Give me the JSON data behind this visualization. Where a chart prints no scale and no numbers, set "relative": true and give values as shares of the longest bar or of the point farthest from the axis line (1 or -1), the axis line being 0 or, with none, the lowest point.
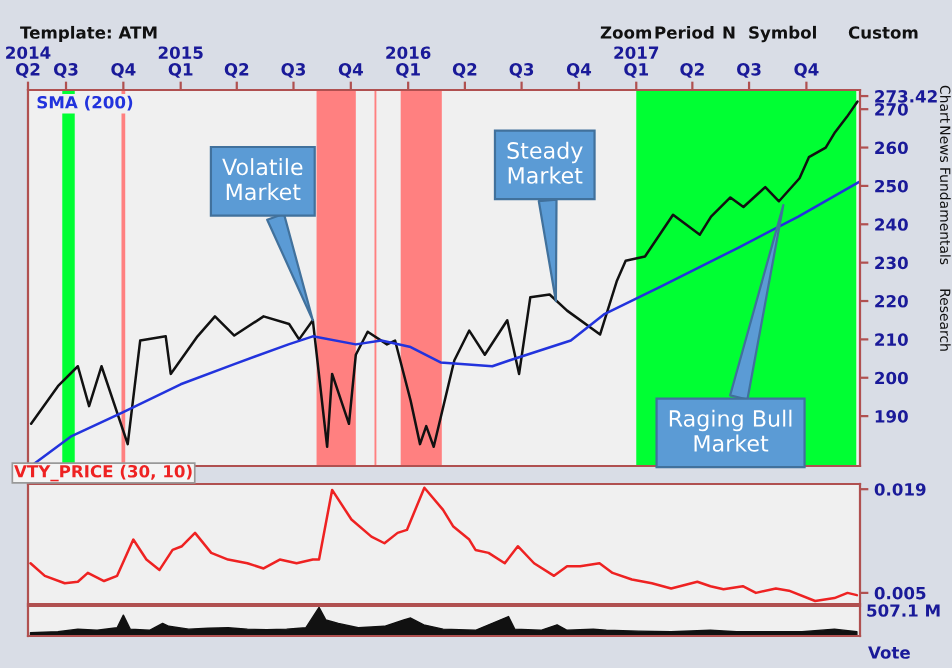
{
  "chart_data": [
    {
      "type": "line",
      "xlim": [
        "2014-05-01",
        "2017-12-26"
      ],
      "ylim": [
        177,
        275
      ],
      "yticks": [
        190,
        200,
        210,
        220,
        230,
        240,
        250,
        260,
        270,
        273.42
      ],
      "xticks": [
        {
          "value": "2014-05-01",
          "label": "Q2"
        },
        {
          "value": "2014-07-01",
          "label": "Q3"
        },
        {
          "value": "2014-10-01",
          "label": "Q4"
        },
        {
          "value": "2015-01-01",
          "label": "Q1"
        },
        {
          "value": "2015-04-01",
          "label": "Q2"
        },
        {
          "value": "2015-07-01",
          "label": "Q3"
        },
        {
          "value": "2015-10-01",
          "label": "Q4"
        },
        {
          "value": "2016-01-01",
          "label": "Q1"
        },
        {
          "value": "2016-04-01",
          "label": "Q2"
        },
        {
          "value": "2016-07-01",
          "label": "Q3"
        },
        {
          "value": "2016-10-01",
          "label": "Q4"
        },
        {
          "value": "2017-01-01",
          "label": "Q1"
        },
        {
          "value": "2017-04-01",
          "label": "Q2"
        },
        {
          "value": "2017-07-01",
          "label": "Q3"
        },
        {
          "value": "2017-10-01",
          "label": "Q4"
        }
      ],
      "x2lim": [
        "2014-05-01",
        "2017-12-26"
      ],
      "x2ticks": [
        {
          "value": "2014-05-01",
          "label": "2014"
        },
        {
          "value": "2015-01-01",
          "label": "2015"
        },
        {
          "value": "2016-01-01",
          "label": "2016"
        },
        {
          "value": "2017-01-01",
          "label": "2017"
        }
      ],
      "grid": false,
      "legend": false,
      "marker": "none",
      "line_style": "solid",
      "series": [
        {
          "color": "#111111",
          "x": [
            "2014-05-06",
            "2014-06-18",
            "2014-07-20",
            "2014-08-07",
            "2014-08-27",
            "2014-10-08",
            "2014-10-28",
            "2014-12-08",
            "2014-12-16",
            "2015-01-28",
            "2015-02-25",
            "2015-03-28",
            "2015-05-14",
            "2015-06-24",
            "2015-07-10",
            "2015-08-01",
            "2015-08-24",
            "2015-09-01",
            "2015-09-28",
            "2015-10-09",
            "2015-10-28",
            "2015-11-28",
            "2015-12-11",
            "2016-01-05",
            "2016-01-20",
            "2016-01-30",
            "2016-02-11",
            "2016-03-15",
            "2016-04-08",
            "2016-05-03",
            "2016-06-08",
            "2016-06-27",
            "2016-07-15",
            "2016-08-15",
            "2016-09-12",
            "2016-11-04",
            "2016-12-01",
            "2016-12-15",
            "2017-01-15",
            "2017-03-01",
            "2017-04-13",
            "2017-05-01",
            "2017-06-01",
            "2017-06-22",
            "2017-07-27",
            "2017-08-18",
            "2017-09-20",
            "2017-10-05",
            "2017-11-01",
            "2017-11-16",
            "2017-12-05",
            "2017-12-22"
          ],
          "values": [
            188,
            197.8,
            203,
            192.6,
            203,
            182.7,
            209.7,
            210.8,
            201,
            210.8,
            216,
            211,
            216,
            214,
            210,
            215,
            182,
            201,
            188,
            206,
            212,
            208.7,
            209.7,
            194,
            182.7,
            187.4,
            182,
            204.5,
            212.3,
            206,
            215,
            201,
            221,
            221.7,
            217.5,
            211.3,
            225.3,
            230.5,
            231.6,
            242.5,
            237.3,
            242,
            247,
            244.5,
            249.7,
            246,
            252,
            257.5,
            260,
            264,
            268,
            272
          ]
        },
        {
          "name": "SMA (200)",
          "color": "#2233dd",
          "x": [
            "2014-05-06",
            "2014-07-10",
            "2014-09-30",
            "2015-01-01",
            "2015-03-27",
            "2015-06-23",
            "2015-08-01",
            "2015-10-09",
            "2015-11-19",
            "2016-01-05",
            "2016-02-22",
            "2016-05-15",
            "2016-06-11",
            "2016-09-18",
            "2016-11-10",
            "2017-02-10",
            "2017-06-15",
            "2017-09-18",
            "2017-12-24"
          ],
          "values": [
            177,
            184.8,
            191,
            198.3,
            203.5,
            208.7,
            210.8,
            208.7,
            209.7,
            208,
            204,
            203,
            204.5,
            209.7,
            216.5,
            223.8,
            234,
            242,
            251
          ]
        }
      ],
      "bands": [
        {
          "axis": "x",
          "from": "2014-06-25",
          "to": "2014-07-15",
          "color": "#00ff33"
        },
        {
          "axis": "x",
          "from": "2014-09-28",
          "to": "2014-10-04",
          "color": "#ff8080"
        },
        {
          "axis": "x",
          "from": "2015-08-07",
          "to": "2015-10-09",
          "color": "#ff8080"
        },
        {
          "axis": "x",
          "from": "2015-11-08",
          "to": "2015-11-11",
          "color": "#ff8080"
        },
        {
          "axis": "x",
          "from": "2015-12-20",
          "to": "2016-02-24",
          "color": "#ff8080"
        },
        {
          "axis": "x",
          "from": "2017-01-01",
          "to": "2017-12-20",
          "color": "#00ff33"
        }
      ],
      "annotations": [
        {
          "text": "Volatile\nMarket",
          "x": "2015-08-01",
          "y": 215
        },
        {
          "text": "Steady\nMarket",
          "x": "2016-08-25",
          "y": 220
        },
        {
          "text": "Raging Bull\nMarket",
          "x": "2017-08-25",
          "y": 245
        },
        "Template: ATM",
        "Zoom",
        "Period",
        "N",
        "Symbol",
        "Custom",
        "Chart",
        "News",
        "Fundamentals",
        "Research"
      ]
    },
    {
      "type": "line",
      "title": "VTY_PRICE (30, 10)",
      "xlim": [
        "2014-05-01",
        "2017-12-26"
      ],
      "ylim": [
        0.0035,
        0.0197
      ],
      "yticks": [
        0.005,
        0.019
      ],
      "tick_labels": "y",
      "grid": false,
      "legend": false,
      "series": [
        {
          "color": "#ee2222",
          "x": [
            "2014-05-05",
            "2014-05-28",
            "2014-06-29",
            "2014-07-20",
            "2014-08-05",
            "2014-08-31",
            "2014-09-21",
            "2014-10-17",
            "2014-11-07",
            "2014-11-28",
            "2014-12-19",
            "2015-01-03",
            "2015-01-24",
            "2015-02-19",
            "2015-03-18",
            "2015-04-18",
            "2015-05-14",
            "2015-06-09",
            "2015-07-06",
            "2015-08-01",
            "2015-08-11",
            "2015-09-01",
            "2015-10-02",
            "2015-11-03",
            "2015-11-24",
            "2015-12-15",
            "2015-12-30",
            "2016-01-27",
            "2016-02-26",
            "2016-03-13",
            "2016-04-08",
            "2016-04-18",
            "2016-05-09",
            "2016-06-04",
            "2016-06-25",
            "2016-07-21",
            "2016-08-22",
            "2016-09-12",
            "2016-10-03",
            "2016-11-03",
            "2016-11-24",
            "2016-12-25",
            "2017-01-26",
            "2017-02-26",
            "2017-04-09",
            "2017-04-30",
            "2017-05-21",
            "2017-06-21",
            "2017-07-12",
            "2017-08-13",
            "2017-09-03",
            "2017-10-15",
            "2017-11-15",
            "2017-12-06",
            "2017-12-21"
          ],
          "values": [
            0.009,
            0.0073,
            0.0063,
            0.0065,
            0.0077,
            0.0066,
            0.0073,
            0.0122,
            0.0095,
            0.0081,
            0.0108,
            0.0113,
            0.0131,
            0.0104,
            0.0095,
            0.009,
            0.0083,
            0.0095,
            0.009,
            0.0095,
            0.0095,
            0.0189,
            0.0149,
            0.0126,
            0.0117,
            0.0131,
            0.0135,
            0.0192,
            0.0162,
            0.014,
            0.0122,
            0.0108,
            0.0104,
            0.009,
            0.0113,
            0.009,
            0.0073,
            0.0086,
            0.0086,
            0.009,
            0.0077,
            0.0068,
            0.0063,
            0.0056,
            0.0065,
            0.0059,
            0.0055,
            0.0059,
            0.005,
            0.0056,
            0.0053,
            0.0039,
            0.0043,
            0.005,
            0.0047
          ]
        }
      ]
    },
    {
      "type": "area",
      "relative": true,
      "xlim": [
        "2014-05-01",
        "2017-12-26"
      ],
      "tick_labels": false,
      "grid": false,
      "legend": false,
      "series": [
        {
          "color": "#111111",
          "x": [
            "2014-05-05",
            "2014-06-18",
            "2014-07-20",
            "2014-08-20",
            "2014-09-21",
            "2014-10-01",
            "2014-10-12",
            "2014-11-12",
            "2014-12-03",
            "2014-12-13",
            "2015-01-14",
            "2015-02-14",
            "2015-03-18",
            "2015-04-18",
            "2015-05-19",
            "2015-06-20",
            "2015-07-21",
            "2015-08-11",
            "2015-08-22",
            "2015-09-11",
            "2015-10-13",
            "2015-11-24",
            "2015-12-25",
            "2016-01-05",
            "2016-01-26",
            "2016-02-26",
            "2016-04-18",
            "2016-06-10",
            "2016-06-20",
            "2016-08-01",
            "2016-08-27",
            "2016-09-12",
            "2016-10-24",
            "2016-11-14",
            "2017-01-05",
            "2017-02-26",
            "2017-04-30",
            "2017-06-11",
            "2017-08-02",
            "2017-09-24",
            "2017-11-15",
            "2017-12-21"
          ],
          "values": [
            0.12,
            0.15,
            0.24,
            0.2,
            0.29,
            0.73,
            0.24,
            0.2,
            0.44,
            0.34,
            0.24,
            0.27,
            0.29,
            0.24,
            0.22,
            0.24,
            0.29,
            1,
            0.56,
            0.44,
            0.29,
            0.34,
            0.56,
            0.63,
            0.39,
            0.24,
            0.2,
            0.68,
            0.24,
            0.2,
            0.39,
            0.2,
            0.24,
            0.2,
            0.17,
            0.15,
            0.2,
            0.15,
            0.15,
            0.15,
            0.24,
            0.15
          ]
        }
      ],
      "annotations": [
        "507.1 M",
        "Vote"
      ]
    }
  ]
}
